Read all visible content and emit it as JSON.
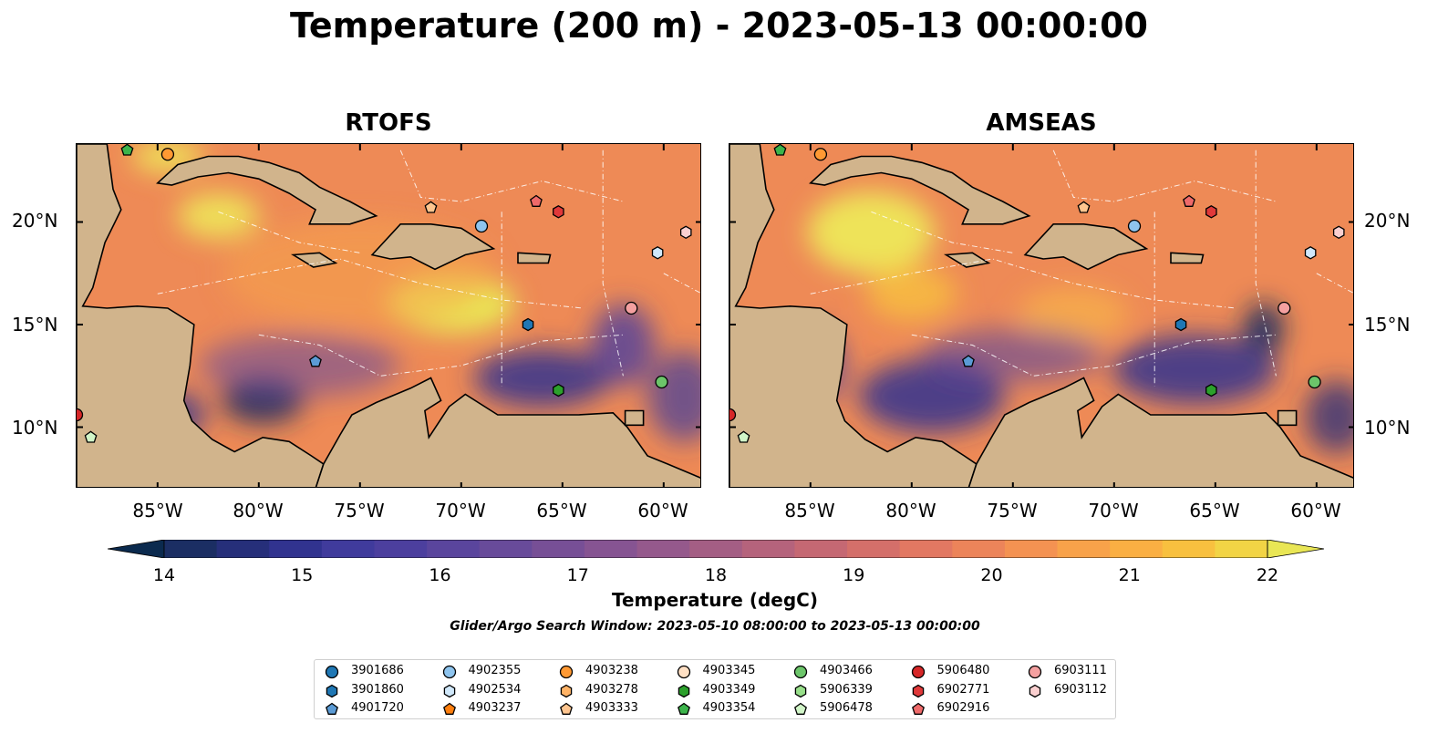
{
  "title": "Temperature (200 m) - 2023-05-13 00:00:00",
  "panels": [
    {
      "title": "RTOFS",
      "variant": "rtofs"
    },
    {
      "title": "AMSEAS",
      "variant": "amseas"
    }
  ],
  "lat_ticks": [
    "20°N",
    "15°N",
    "10°N"
  ],
  "lon_ticks": [
    "85°W",
    "80°W",
    "75°W",
    "70°W",
    "65°W",
    "60°W"
  ],
  "colorbar": {
    "label": "Temperature (degC)",
    "ticks": [
      "14",
      "15",
      "16",
      "17",
      "18",
      "19",
      "20",
      "21",
      "22"
    ],
    "min": 14,
    "max": 22,
    "step": 0.5,
    "colors": [
      "#0b2a4e",
      "#1b2e63",
      "#262f7a",
      "#31338f",
      "#403b9c",
      "#4c3f9e",
      "#5a459d",
      "#684b9a",
      "#774f96",
      "#865492",
      "#95598c",
      "#a45e84",
      "#b5637c",
      "#c56873",
      "#d46f6a",
      "#e27862",
      "#ec845a",
      "#f49252",
      "#f8a24a",
      "#faaf43",
      "#f8c03f",
      "#f2d445",
      "#e9e655"
    ]
  },
  "search_window": "Glider/Argo Search Window: 2023-05-10 08:00:00 to 2023-05-13 00:00:00",
  "legend": [
    {
      "id": "3901686",
      "shape": "circle",
      "color": "#1f77b4"
    },
    {
      "id": "3901860",
      "shape": "hexagon",
      "color": "#1f77b4"
    },
    {
      "id": "4901720",
      "shape": "pentagon",
      "color": "#5b9bd5"
    },
    {
      "id": "4902355",
      "shape": "circle",
      "color": "#8ec4ee"
    },
    {
      "id": "4902534",
      "shape": "hexagon",
      "color": "#d0e8fa"
    },
    {
      "id": "4903237",
      "shape": "pentagon",
      "color": "#ff7f0e"
    },
    {
      "id": "4903238",
      "shape": "circle",
      "color": "#ff9933"
    },
    {
      "id": "4903278",
      "shape": "hexagon",
      "color": "#ffb366"
    },
    {
      "id": "4903333",
      "shape": "pentagon",
      "color": "#ffc58f"
    },
    {
      "id": "4903345",
      "shape": "circle",
      "color": "#ffe0c4"
    },
    {
      "id": "4903349",
      "shape": "hexagon",
      "color": "#2ca02c"
    },
    {
      "id": "4903354",
      "shape": "pentagon",
      "color": "#3cb44b"
    },
    {
      "id": "4903466",
      "shape": "circle",
      "color": "#6cc56a"
    },
    {
      "id": "5906339",
      "shape": "hexagon",
      "color": "#98df8a"
    },
    {
      "id": "5906478",
      "shape": "pentagon",
      "color": "#d1f5c8"
    },
    {
      "id": "5906480",
      "shape": "circle",
      "color": "#d62728"
    },
    {
      "id": "6902771",
      "shape": "hexagon",
      "color": "#e0393a"
    },
    {
      "id": "6902916",
      "shape": "pentagon",
      "color": "#ef6a6a"
    },
    {
      "id": "6903111",
      "shape": "circle",
      "color": "#f4a0a0"
    },
    {
      "id": "6903112",
      "shape": "hexagon",
      "color": "#fbd0d0"
    }
  ],
  "floats": [
    {
      "id": "4903354",
      "lon": -86.5,
      "lat": 23.5
    },
    {
      "id": "4903238",
      "lon": -84.5,
      "lat": 23.3
    },
    {
      "id": "4903333",
      "lon": -71.5,
      "lat": 20.7
    },
    {
      "id": "4902355",
      "lon": -69.0,
      "lat": 19.8
    },
    {
      "id": "6902916",
      "lon": -66.3,
      "lat": 21.0
    },
    {
      "id": "6902771",
      "lon": -65.2,
      "lat": 20.5
    },
    {
      "id": "6903112",
      "lon": -58.9,
      "lat": 19.5
    },
    {
      "id": "4902534",
      "lon": -60.3,
      "lat": 18.5
    },
    {
      "id": "3901860",
      "lon": -66.7,
      "lat": 15.0
    },
    {
      "id": "6903111",
      "lon": -61.6,
      "lat": 15.8
    },
    {
      "id": "4901720",
      "lon": -77.2,
      "lat": 13.2
    },
    {
      "id": "4903349",
      "lon": -65.2,
      "lat": 11.8
    },
    {
      "id": "4903466",
      "lon": -60.1,
      "lat": 12.2
    },
    {
      "id": "5906480",
      "lon": -89.0,
      "lat": 10.6
    },
    {
      "id": "5906478",
      "lon": -88.3,
      "lat": 9.5
    }
  ]
}
